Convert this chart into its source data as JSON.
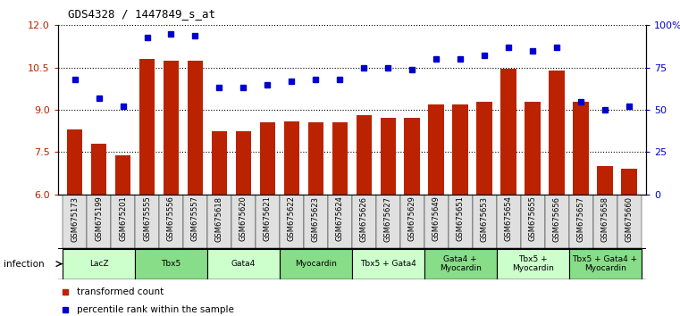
{
  "title": "GDS4328 / 1447849_s_at",
  "samples": [
    "GSM675173",
    "GSM675199",
    "GSM675201",
    "GSM675555",
    "GSM675556",
    "GSM675557",
    "GSM675618",
    "GSM675620",
    "GSM675621",
    "GSM675622",
    "GSM675623",
    "GSM675624",
    "GSM675626",
    "GSM675627",
    "GSM675629",
    "GSM675649",
    "GSM675651",
    "GSM675653",
    "GSM675654",
    "GSM675655",
    "GSM675656",
    "GSM675657",
    "GSM675658",
    "GSM675660"
  ],
  "bar_values": [
    8.3,
    7.8,
    7.4,
    10.8,
    10.75,
    10.75,
    8.25,
    8.25,
    8.55,
    8.6,
    8.55,
    8.55,
    8.8,
    8.7,
    8.7,
    9.2,
    9.2,
    9.3,
    10.45,
    9.3,
    10.4,
    9.3,
    7.0,
    6.9
  ],
  "dot_values": [
    68,
    57,
    52,
    93,
    95,
    94,
    63,
    63,
    65,
    67,
    68,
    68,
    75,
    75,
    74,
    80,
    80,
    82,
    87,
    85,
    87,
    55,
    50,
    52
  ],
  "bar_color": "#BB2200",
  "dot_color": "#0000CC",
  "ylim_left": [
    6,
    12
  ],
  "ylim_right": [
    0,
    100
  ],
  "yticks_left": [
    6,
    7.5,
    9,
    10.5,
    12
  ],
  "yticks_right": [
    0,
    25,
    50,
    75,
    100
  ],
  "ytick_labels_right": [
    "0",
    "25",
    "50",
    "75",
    "100%"
  ],
  "groups": [
    {
      "label": "LacZ",
      "start": 0,
      "end": 2,
      "color": "#CCFFCC"
    },
    {
      "label": "Tbx5",
      "start": 3,
      "end": 5,
      "color": "#88DD88"
    },
    {
      "label": "Gata4",
      "start": 6,
      "end": 8,
      "color": "#CCFFCC"
    },
    {
      "label": "Myocardin",
      "start": 9,
      "end": 11,
      "color": "#88DD88"
    },
    {
      "label": "Tbx5 + Gata4",
      "start": 12,
      "end": 14,
      "color": "#CCFFCC"
    },
    {
      "label": "Gata4 +\nMyocardin",
      "start": 15,
      "end": 17,
      "color": "#88DD88"
    },
    {
      "label": "Tbx5 +\nMyocardin",
      "start": 18,
      "end": 20,
      "color": "#CCFFCC"
    },
    {
      "label": "Tbx5 + Gata4 +\nMyocardin",
      "start": 21,
      "end": 23,
      "color": "#88DD88"
    }
  ],
  "group_header": "infection",
  "legend_bar_label": "transformed count",
  "legend_dot_label": "percentile rank within the sample"
}
